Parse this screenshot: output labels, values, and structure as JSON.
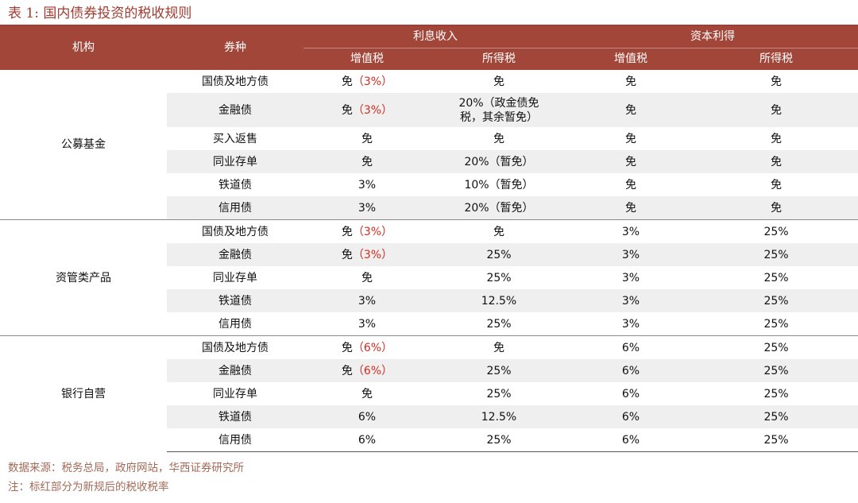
{
  "title": "表 1:  国内债券投资的税收规则",
  "header": {
    "col_institution": "机构",
    "col_bond_type": "券种",
    "group_interest": "利息收入",
    "group_capital": "资本利得",
    "vat": "增值税",
    "income_tax": "所得税"
  },
  "sections": [
    {
      "institution": "公募基金",
      "rows": [
        {
          "bond": "国债及地方债",
          "int_vat": "免",
          "int_vat_red": "（3%）",
          "int_income": "免",
          "cap_vat": "免",
          "cap_income": "免"
        },
        {
          "bond": "金融债",
          "int_vat": "免",
          "int_vat_red": "（3%）",
          "int_income": "20%（政金债免税，其余暂免）",
          "cap_vat": "免",
          "cap_income": "免"
        },
        {
          "bond": "买入返售",
          "int_vat": "免",
          "int_vat_red": "",
          "int_income": "免",
          "cap_vat": "免",
          "cap_income": "免"
        },
        {
          "bond": "同业存单",
          "int_vat": "免",
          "int_vat_red": "",
          "int_income": "20%（暂免）",
          "cap_vat": "免",
          "cap_income": "免"
        },
        {
          "bond": "铁道债",
          "int_vat": "3%",
          "int_vat_red": "",
          "int_income": "10%（暂免）",
          "cap_vat": "免",
          "cap_income": "免"
        },
        {
          "bond": "信用债",
          "int_vat": "3%",
          "int_vat_red": "",
          "int_income": "20%（暂免）",
          "cap_vat": "免",
          "cap_income": "免"
        }
      ]
    },
    {
      "institution": "资管类产品",
      "rows": [
        {
          "bond": "国债及地方债",
          "int_vat": "免",
          "int_vat_red": "（3%）",
          "int_income": "免",
          "cap_vat": "3%",
          "cap_income": "25%"
        },
        {
          "bond": "金融债",
          "int_vat": "免",
          "int_vat_red": "（3%）",
          "int_income": "25%",
          "cap_vat": "3%",
          "cap_income": "25%"
        },
        {
          "bond": "同业存单",
          "int_vat": "免",
          "int_vat_red": "",
          "int_income": "25%",
          "cap_vat": "3%",
          "cap_income": "25%"
        },
        {
          "bond": "铁道债",
          "int_vat": "3%",
          "int_vat_red": "",
          "int_income": "12.5%",
          "cap_vat": "3%",
          "cap_income": "25%"
        },
        {
          "bond": "信用债",
          "int_vat": "3%",
          "int_vat_red": "",
          "int_income": "25%",
          "cap_vat": "3%",
          "cap_income": "25%"
        }
      ]
    },
    {
      "institution": "银行自营",
      "rows": [
        {
          "bond": "国债及地方债",
          "int_vat": "免",
          "int_vat_red": "（6%）",
          "int_income": "免",
          "cap_vat": "6%",
          "cap_income": "25%"
        },
        {
          "bond": "金融债",
          "int_vat": "免",
          "int_vat_red": "（6%）",
          "int_income": "25%",
          "cap_vat": "6%",
          "cap_income": "25%"
        },
        {
          "bond": "同业存单",
          "int_vat": "免",
          "int_vat_red": "",
          "int_income": "25%",
          "cap_vat": "6%",
          "cap_income": "25%"
        },
        {
          "bond": "铁道债",
          "int_vat": "6%",
          "int_vat_red": "",
          "int_income": "12.5%",
          "cap_vat": "6%",
          "cap_income": "25%"
        },
        {
          "bond": "信用债",
          "int_vat": "6%",
          "int_vat_red": "",
          "int_income": "25%",
          "cap_vat": "6%",
          "cap_income": "25%"
        }
      ]
    }
  ],
  "footnotes": {
    "source": "数据来源：税务总局，政府网站，华西证券研究所",
    "note": "注：标红部分为新规后的税收税率"
  }
}
